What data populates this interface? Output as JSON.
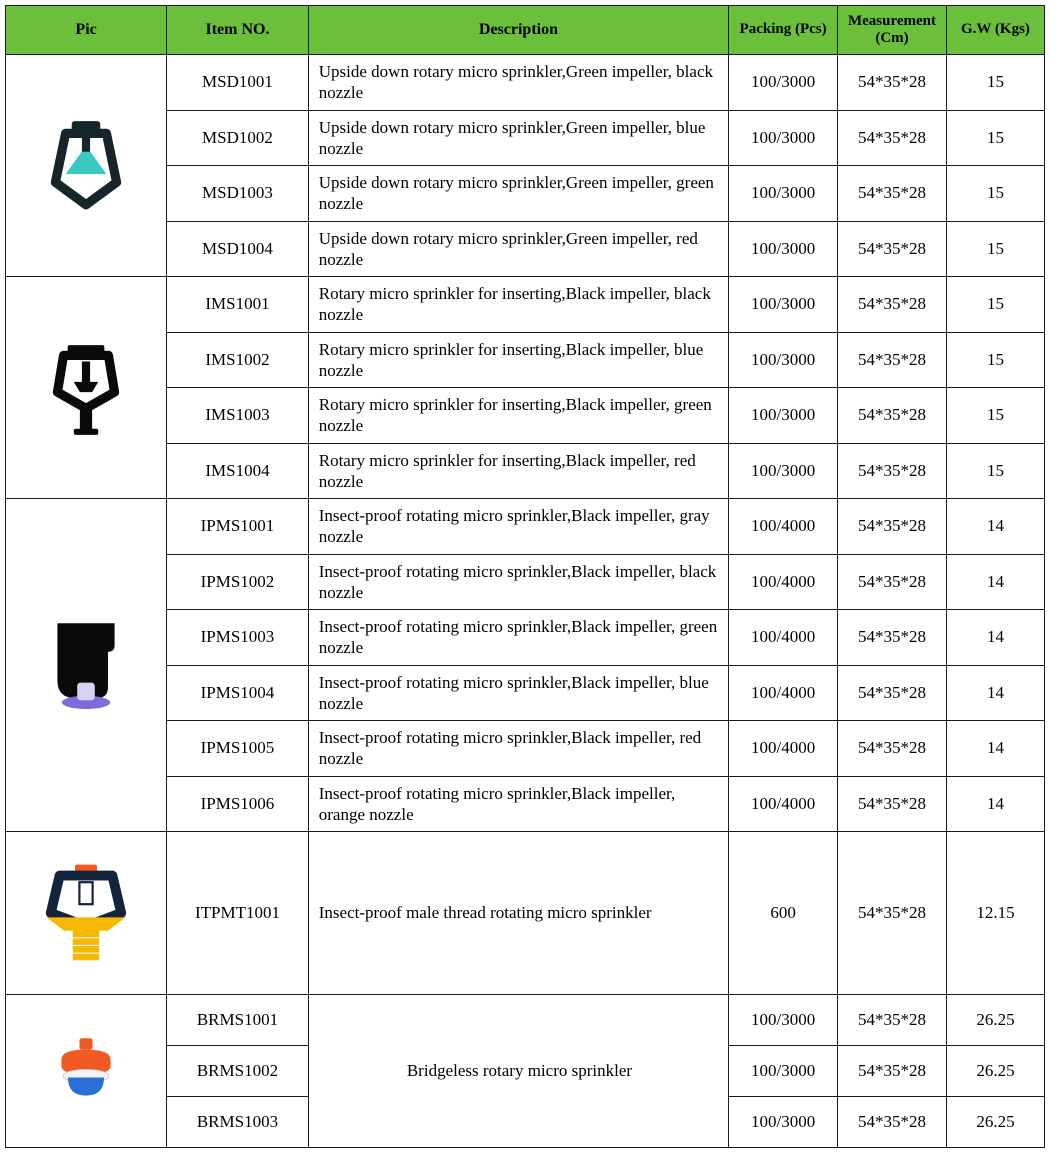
{
  "table": {
    "header_bg": "#6bbf3a",
    "border_color": "#1a1a1a",
    "columns": {
      "pic": "Pic",
      "item": "Item NO.",
      "desc": "Description",
      "pack": "Packing (Pcs)",
      "meas": "Measurement (Cm)",
      "gw": "G.W (Kgs)"
    },
    "groups": [
      {
        "icon": "sprinkler-upside-down",
        "icon_colors": {
          "frame": "#15252a",
          "impeller": "#3bc7c2"
        },
        "rows": [
          {
            "item": "MSD1001",
            "desc": "Upside down rotary micro sprinkler,Green impeller, black nozzle",
            "pack": "100/3000",
            "meas": "54*35*28",
            "gw": "15"
          },
          {
            "item": "MSD1002",
            "desc": "Upside down rotary micro sprinkler,Green impeller, blue nozzle",
            "pack": "100/3000",
            "meas": "54*35*28",
            "gw": "15"
          },
          {
            "item": "MSD1003",
            "desc": "Upside down rotary micro sprinkler,Green impeller, green nozzle",
            "pack": "100/3000",
            "meas": "54*35*28",
            "gw": "15"
          },
          {
            "item": "MSD1004",
            "desc": "Upside down rotary micro sprinkler,Green impeller, red nozzle",
            "pack": "100/3000",
            "meas": "54*35*28",
            "gw": "15"
          }
        ]
      },
      {
        "icon": "sprinkler-inserting",
        "icon_colors": {
          "frame": "#0a0a0a",
          "impeller": "#0a0a0a"
        },
        "rows": [
          {
            "item": "IMS1001",
            "desc": "Rotary micro sprinkler for inserting,Black impeller, black nozzle",
            "pack": "100/3000",
            "meas": "54*35*28",
            "gw": "15"
          },
          {
            "item": "IMS1002",
            "desc": "Rotary micro sprinkler for inserting,Black impeller, blue nozzle",
            "pack": "100/3000",
            "meas": "54*35*28",
            "gw": "15"
          },
          {
            "item": "IMS1003",
            "desc": "Rotary micro sprinkler for inserting,Black impeller, green nozzle",
            "pack": "100/3000",
            "meas": "54*35*28",
            "gw": "15"
          },
          {
            "item": "IMS1004",
            "desc": "Rotary micro sprinkler for inserting,Black impeller, red nozzle",
            "pack": "100/3000",
            "meas": "54*35*28",
            "gw": "15"
          }
        ]
      },
      {
        "icon": "sprinkler-insect-proof",
        "icon_colors": {
          "frame": "#0a0a0a",
          "nozzle": "#7a6fd8"
        },
        "rows": [
          {
            "item": "IPMS1001",
            "desc": "Insect-proof rotating micro sprinkler,Black impeller, gray nozzle",
            "pack": "100/4000",
            "meas": "54*35*28",
            "gw": "14"
          },
          {
            "item": "IPMS1002",
            "desc": "Insect-proof rotating micro sprinkler,Black impeller, black nozzle",
            "pack": "100/4000",
            "meas": "54*35*28",
            "gw": "14"
          },
          {
            "item": "IPMS1003",
            "desc": "Insect-proof rotating micro sprinkler,Black impeller, green nozzle",
            "pack": "100/4000",
            "meas": "54*35*28",
            "gw": "14"
          },
          {
            "item": "IPMS1004",
            "desc": "Insect-proof rotating micro sprinkler,Black impeller, blue nozzle",
            "pack": "100/4000",
            "meas": "54*35*28",
            "gw": "14"
          },
          {
            "item": "IPMS1005",
            "desc": "Insect-proof rotating micro sprinkler,Black impeller, red nozzle",
            "pack": "100/4000",
            "meas": "54*35*28",
            "gw": "14"
          },
          {
            "item": "IPMS1006",
            "desc": "Insect-proof rotating micro sprinkler,Black impeller, orange nozzle",
            "pack": "100/4000",
            "meas": "54*35*28",
            "gw": "14"
          }
        ]
      },
      {
        "icon": "sprinkler-male-thread",
        "icon_colors": {
          "frame": "#14243a",
          "base": "#f6b800",
          "top": "#f15a24"
        },
        "rows": [
          {
            "item": "ITPMT1001",
            "desc": "Insect-proof male thread rotating micro sprinkler",
            "pack": "600",
            "meas": "54*35*28",
            "gw": "12.15"
          }
        ],
        "tall_row": true
      },
      {
        "icon": "sprinkler-bridgeless",
        "icon_colors": {
          "top": "#f15a24",
          "mid": "#f2f2f2",
          "base": "#2a6fd6"
        },
        "shared_desc": "Bridgeless rotary micro sprinkler",
        "rows": [
          {
            "item": "BRMS1001",
            "pack": "100/3000",
            "meas": "54*35*28",
            "gw": "26.25"
          },
          {
            "item": "BRMS1002",
            "pack": "100/3000",
            "meas": "54*35*28",
            "gw": "26.25"
          },
          {
            "item": "BRMS1003",
            "pack": "100/3000",
            "meas": "54*35*28",
            "gw": "26.25"
          }
        ]
      }
    ]
  }
}
